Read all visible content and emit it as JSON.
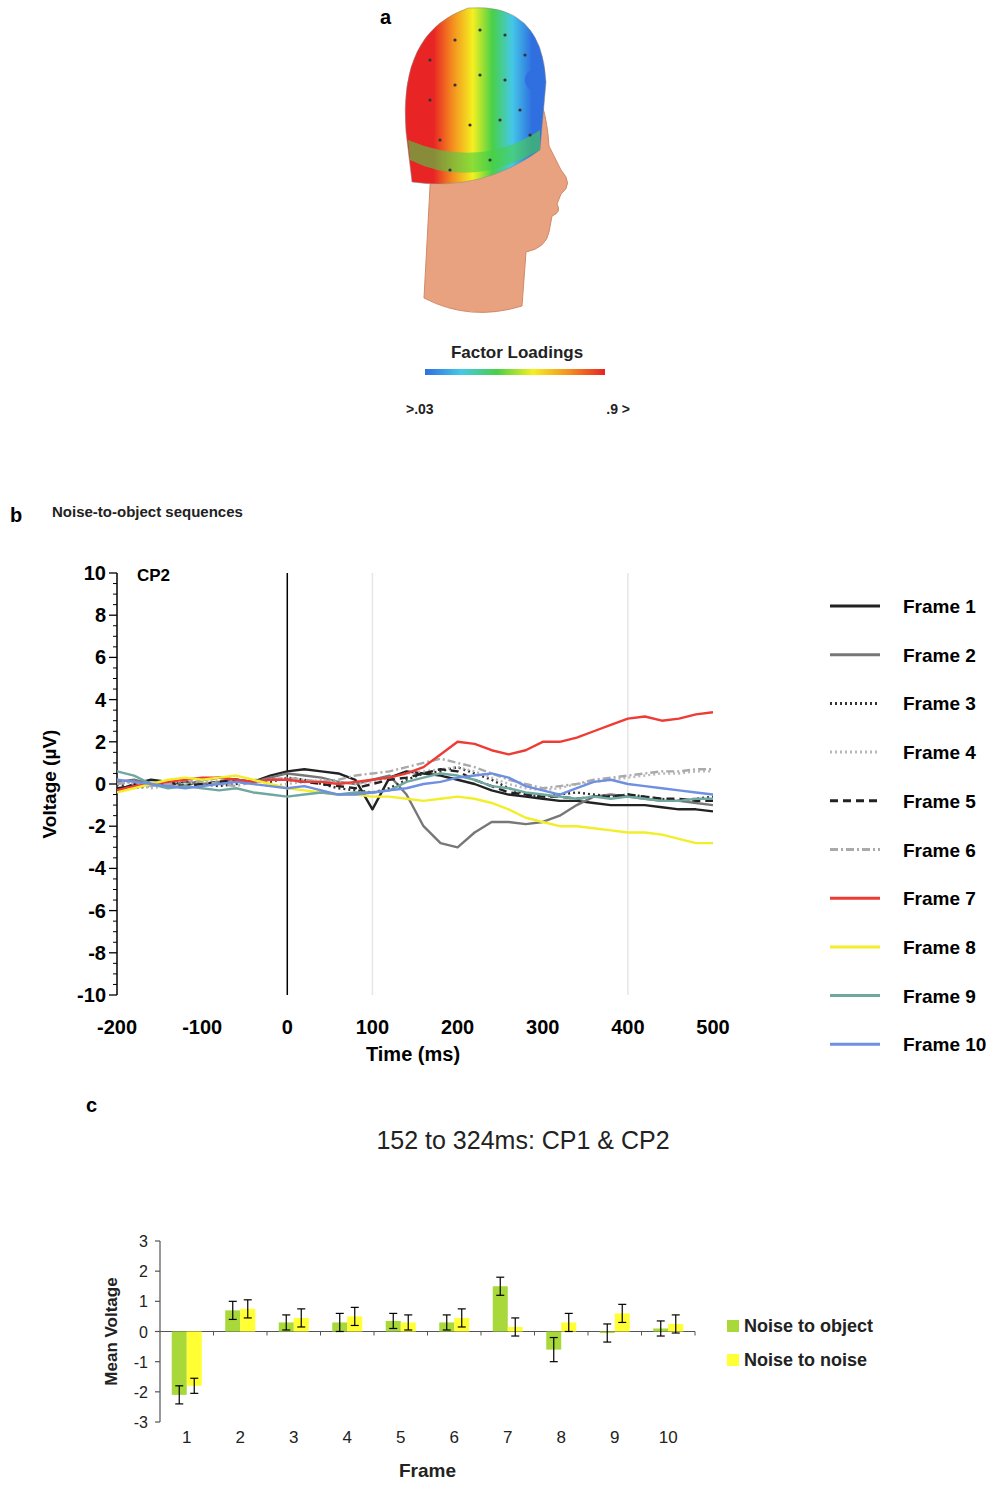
{
  "chart_data": [
    {
      "type": "topomap",
      "panel": "a",
      "colorbar_title": "Factor Loadings",
      "colorbar_labels": [
        ">.03",
        ".9 >"
      ],
      "colors": [
        "#2f6fe0",
        "#45c8e8",
        "#48d048",
        "#f4f020",
        "#f49020",
        "#e82424"
      ]
    },
    {
      "type": "line",
      "panel": "b",
      "title": "Noise-to-object sequences",
      "annotations": [
        "CP2"
      ],
      "x_label": "Time (ms)",
      "y_label": "Voltage (µV)",
      "x": [
        -200,
        -180,
        -160,
        -140,
        -120,
        -100,
        -80,
        -60,
        -40,
        -20,
        0,
        20,
        40,
        60,
        80,
        100,
        120,
        140,
        160,
        180,
        200,
        220,
        240,
        260,
        280,
        300,
        320,
        340,
        360,
        380,
        400,
        420,
        440,
        460,
        480,
        500
      ],
      "xlim": [
        -200,
        500
      ],
      "xticks": [
        -200,
        -100,
        0,
        100,
        200,
        300,
        400,
        500
      ],
      "ylim": [
        -10,
        10
      ],
      "yticks": [
        -10,
        -8,
        -6,
        -4,
        -2,
        0,
        2,
        4,
        6,
        8,
        10
      ],
      "vlines": [
        {
          "value": 0,
          "color": "#000000"
        },
        {
          "value": 100,
          "color": "#e6e6e6"
        },
        {
          "value": 400,
          "color": "#e6e6e6"
        }
      ],
      "legend": "right",
      "series": [
        {
          "name": "Frame 1",
          "color": "#222222",
          "line_style": "solid",
          "values": [
            -0.3,
            0.0,
            0.2,
            0.1,
            -0.1,
            0.2,
            0.3,
            0.2,
            0.1,
            0.4,
            0.6,
            0.7,
            0.6,
            0.5,
            0.2,
            -1.2,
            0.3,
            0.6,
            0.5,
            0.4,
            0.2,
            0.0,
            -0.3,
            -0.5,
            -0.6,
            -0.7,
            -0.8,
            -0.8,
            -0.9,
            -1.0,
            -1.0,
            -1.0,
            -1.1,
            -1.2,
            -1.2,
            -1.3
          ]
        },
        {
          "name": "Frame 2",
          "color": "#777777",
          "line_style": "solid",
          "values": [
            0.1,
            0.2,
            0.0,
            -0.1,
            0.1,
            0.0,
            0.1,
            0.2,
            0.1,
            0.3,
            0.5,
            0.4,
            0.3,
            0.1,
            0.0,
            0.2,
            0.4,
            -0.5,
            -2.0,
            -2.8,
            -3.0,
            -2.3,
            -1.8,
            -1.8,
            -1.9,
            -1.8,
            -1.5,
            -1.0,
            -0.6,
            -0.5,
            -0.6,
            -0.7,
            -0.8,
            -0.8,
            -0.9,
            -1.0
          ]
        },
        {
          "name": "Frame 3",
          "color": "#333333",
          "line_style": "dotted",
          "values": [
            0.0,
            -0.2,
            -0.1,
            0.0,
            0.1,
            0.0,
            -0.1,
            0.0,
            0.2,
            0.1,
            0.3,
            0.2,
            0.0,
            -0.2,
            -0.3,
            -0.4,
            -0.2,
            0.2,
            0.5,
            0.6,
            0.8,
            0.5,
            0.2,
            -0.2,
            -0.5,
            -0.6,
            -0.5,
            -0.4,
            -0.5,
            -0.6,
            -0.5,
            -0.6,
            -0.7,
            -0.8,
            -0.7,
            -0.6
          ]
        },
        {
          "name": "Frame 4",
          "color": "#b8b8b8",
          "line_style": "dotted",
          "values": [
            0.2,
            0.0,
            -0.2,
            -0.1,
            0.0,
            0.1,
            0.2,
            0.1,
            0.0,
            -0.1,
            0.0,
            0.1,
            0.2,
            0.1,
            0.0,
            0.1,
            0.3,
            0.5,
            0.6,
            0.7,
            0.8,
            0.6,
            0.3,
            0.0,
            -0.2,
            -0.3,
            -0.2,
            0.0,
            0.1,
            0.2,
            0.3,
            0.4,
            0.5,
            0.5,
            0.6,
            0.6
          ]
        },
        {
          "name": "Frame 5",
          "color": "#222222",
          "line_style": "dashed",
          "values": [
            -0.2,
            -0.1,
            0.0,
            0.1,
            -0.1,
            0.0,
            0.1,
            0.2,
            0.1,
            0.2,
            0.2,
            0.1,
            0.0,
            -0.1,
            -0.2,
            0.0,
            0.2,
            0.3,
            0.5,
            0.7,
            0.6,
            0.2,
            -0.1,
            -0.4,
            -0.5,
            -0.6,
            -0.6,
            -0.7,
            -0.6,
            -0.6,
            -0.5,
            -0.6,
            -0.7,
            -0.7,
            -0.8,
            -0.8
          ]
        },
        {
          "name": "Frame 6",
          "color": "#aaaaaa",
          "line_style": "dashdot",
          "values": [
            0.0,
            0.1,
            -0.1,
            0.0,
            0.2,
            0.1,
            0.0,
            -0.1,
            0.1,
            0.2,
            0.3,
            0.2,
            0.1,
            0.2,
            0.4,
            0.5,
            0.6,
            0.8,
            1.0,
            1.2,
            1.0,
            0.8,
            0.5,
            0.2,
            0.0,
            -0.2,
            -0.1,
            0.0,
            0.2,
            0.3,
            0.4,
            0.5,
            0.6,
            0.6,
            0.7,
            0.7
          ]
        },
        {
          "name": "Frame 7",
          "color": "#ee3b36",
          "line_style": "solid",
          "values": [
            -0.3,
            -0.1,
            0.0,
            0.1,
            0.2,
            0.3,
            0.3,
            0.2,
            0.1,
            0.2,
            0.2,
            0.1,
            0.1,
            0.0,
            0.1,
            0.2,
            0.3,
            0.5,
            0.8,
            1.4,
            2.0,
            1.9,
            1.6,
            1.4,
            1.6,
            2.0,
            2.0,
            2.2,
            2.5,
            2.8,
            3.1,
            3.2,
            3.0,
            3.1,
            3.3,
            3.4
          ]
        },
        {
          "name": "Frame 8",
          "color": "#f2ee2a",
          "line_style": "solid",
          "values": [
            -0.4,
            -0.2,
            0.0,
            0.2,
            0.3,
            0.2,
            0.3,
            0.4,
            0.2,
            0.0,
            -0.2,
            -0.3,
            -0.4,
            -0.5,
            -0.5,
            -0.6,
            -0.6,
            -0.7,
            -0.8,
            -0.7,
            -0.6,
            -0.7,
            -0.9,
            -1.2,
            -1.6,
            -1.8,
            -2.0,
            -2.0,
            -2.1,
            -2.2,
            -2.3,
            -2.3,
            -2.4,
            -2.6,
            -2.8,
            -2.8
          ]
        },
        {
          "name": "Frame 9",
          "color": "#6fa8a0",
          "line_style": "solid",
          "values": [
            0.6,
            0.4,
            0.0,
            -0.2,
            -0.1,
            -0.2,
            -0.3,
            -0.2,
            -0.4,
            -0.5,
            -0.6,
            -0.5,
            -0.4,
            -0.5,
            -0.4,
            -0.4,
            -0.3,
            0.1,
            0.3,
            0.5,
            0.4,
            0.2,
            -0.1,
            -0.2,
            -0.4,
            -0.5,
            -0.6,
            -0.7,
            -0.6,
            -0.7,
            -0.6,
            -0.7,
            -0.8,
            -0.8,
            -0.7,
            -0.7
          ]
        },
        {
          "name": "Frame 10",
          "color": "#6f8fe0",
          "line_style": "solid",
          "values": [
            0.2,
            0.1,
            0.0,
            -0.1,
            -0.2,
            -0.1,
            0.0,
            0.1,
            0.0,
            -0.1,
            -0.2,
            -0.1,
            -0.3,
            -0.5,
            -0.5,
            -0.4,
            -0.3,
            -0.2,
            0.0,
            0.1,
            0.3,
            0.4,
            0.5,
            0.3,
            -0.1,
            -0.3,
            -0.5,
            -0.2,
            0.1,
            0.2,
            0.0,
            -0.1,
            -0.2,
            -0.3,
            -0.4,
            -0.5
          ]
        }
      ]
    },
    {
      "type": "bar",
      "panel": "c",
      "title": "152 to 324ms: CP1 & CP2",
      "x_label": "Frame",
      "y_label": "Mean Voltage",
      "categories": [
        "1",
        "2",
        "3",
        "4",
        "5",
        "6",
        "7",
        "8",
        "9",
        "10"
      ],
      "ylim": [
        -3,
        3
      ],
      "yticks": [
        -3,
        -2,
        -1,
        0,
        1,
        2,
        3
      ],
      "legend": "right",
      "series": [
        {
          "name": "Noise to object",
          "color": "#a8d83a",
          "values": [
            -2.1,
            0.7,
            0.3,
            0.3,
            0.35,
            0.3,
            1.5,
            -0.6,
            -0.05,
            0.1
          ],
          "errors": [
            0.3,
            0.3,
            0.25,
            0.3,
            0.25,
            0.25,
            0.3,
            0.4,
            0.3,
            0.25
          ]
        },
        {
          "name": "Noise to noise",
          "color": "#ffff33",
          "values": [
            -1.8,
            0.75,
            0.45,
            0.5,
            0.3,
            0.45,
            0.15,
            0.3,
            0.6,
            0.25
          ],
          "errors": [
            0.25,
            0.3,
            0.3,
            0.3,
            0.25,
            0.3,
            0.3,
            0.3,
            0.3,
            0.3
          ]
        }
      ]
    }
  ]
}
